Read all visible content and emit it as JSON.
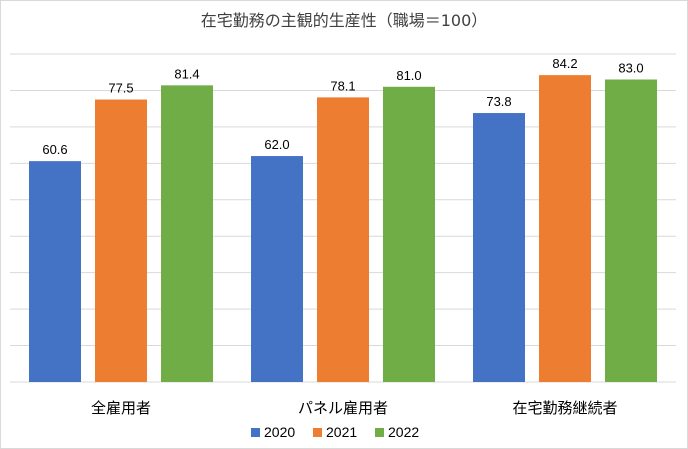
{
  "chart_data": {
    "type": "bar",
    "title": "在宅勤務の主観的生産性（職場＝100）",
    "categories": [
      "全雇用者",
      "パネル雇用者",
      "在宅勤務継続者"
    ],
    "series": [
      {
        "name": "2020",
        "values": [
          60.6,
          62.0,
          73.8
        ],
        "color": "#4472C4"
      },
      {
        "name": "2021",
        "values": [
          77.5,
          78.1,
          84.2
        ],
        "color": "#ED7D31"
      },
      {
        "name": "2022",
        "values": [
          81.4,
          81.0,
          83.0
        ],
        "color": "#70AD47"
      }
    ],
    "ylim": [
      0,
      90
    ],
    "grid": true,
    "legend": "bottom"
  }
}
